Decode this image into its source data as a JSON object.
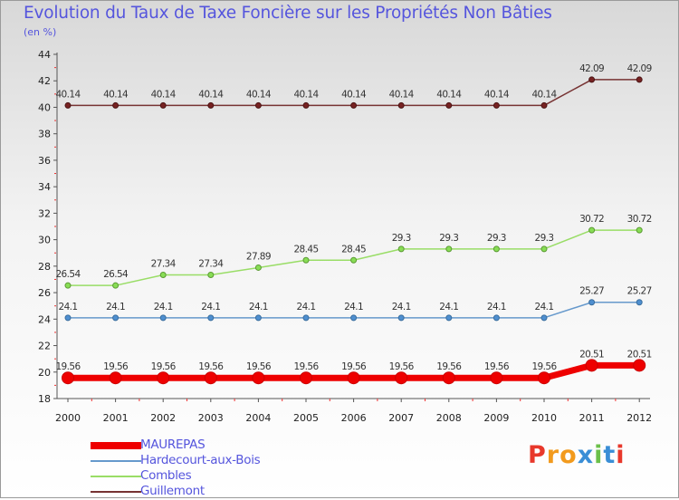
{
  "title": "Evolution du Taux de Taxe Foncière sur les Propriétés Non Bâties",
  "subtitle": "(en %)",
  "logo": {
    "letters": [
      "P",
      "r",
      "o",
      "x",
      "i",
      "t",
      "i"
    ],
    "colors": [
      "#e8382b",
      "#f29a1d",
      "#f29a1d",
      "#3a8ed6",
      "#6cc04a",
      "#3a8ed6",
      "#e8382b"
    ]
  },
  "chart_data": {
    "type": "line",
    "title": "Evolution du Taux de Taxe Foncière sur les Propriétés Non Bâties",
    "ylabel": "(en %)",
    "x": [
      "2000",
      "2001",
      "2002",
      "2003",
      "2004",
      "2005",
      "2006",
      "2007",
      "2008",
      "2009",
      "2010",
      "2011",
      "2012"
    ],
    "ylim": [
      18,
      44
    ],
    "yticks": [
      "18",
      "20",
      "22",
      "24",
      "26",
      "28",
      "30",
      "32",
      "34",
      "36",
      "38",
      "40",
      "42",
      "44"
    ],
    "series": [
      {
        "name": "MAUREPAS",
        "color": "#ee0000",
        "values": [
          19.56,
          19.56,
          19.56,
          19.56,
          19.56,
          19.56,
          19.56,
          19.56,
          19.56,
          19.56,
          19.56,
          20.51,
          20.51
        ],
        "labels": [
          "19.56",
          "19.56",
          "19.56",
          "19.56",
          "19.56",
          "19.56",
          "19.56",
          "19.56",
          "19.56",
          "19.56",
          "19.56",
          "20.51",
          "20.51"
        ]
      },
      {
        "name": "Hardecourt-aux-Bois",
        "color": "#6699cc",
        "values": [
          24.1,
          24.1,
          24.1,
          24.1,
          24.1,
          24.1,
          24.1,
          24.1,
          24.1,
          24.1,
          24.1,
          25.27,
          25.27
        ],
        "labels": [
          "24.1",
          "24.1",
          "24.1",
          "24.1",
          "24.1",
          "24.1",
          "24.1",
          "24.1",
          "24.1",
          "24.1",
          "24.1",
          "25.27",
          "25.27"
        ]
      },
      {
        "name": "Combles",
        "color": "#99dd66",
        "values": [
          26.54,
          26.54,
          27.34,
          27.34,
          27.89,
          28.45,
          28.45,
          29.3,
          29.3,
          29.3,
          29.3,
          30.72,
          30.72
        ],
        "labels": [
          "26.54",
          "26.54",
          "27.34",
          "27.34",
          "27.89",
          "28.45",
          "28.45",
          "29.3",
          "29.3",
          "29.3",
          "29.3",
          "30.72",
          "30.72"
        ]
      },
      {
        "name": "Guillemont",
        "color": "#773333",
        "values": [
          40.14,
          40.14,
          40.14,
          40.14,
          40.14,
          40.14,
          40.14,
          40.14,
          40.14,
          40.14,
          40.14,
          42.09,
          42.09
        ],
        "labels": [
          "40.14",
          "40.14",
          "40.14",
          "40.14",
          "40.14",
          "40.14",
          "40.14",
          "40.14",
          "40.14",
          "40.14",
          "40.14",
          "42.09",
          "42.09"
        ]
      }
    ],
    "legend": {
      "position": "bottom-left"
    }
  }
}
